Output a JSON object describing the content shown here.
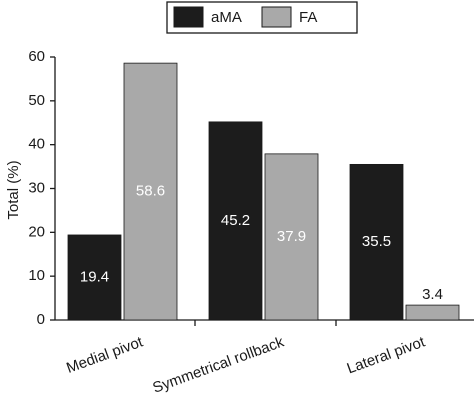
{
  "chart_data": {
    "type": "bar",
    "y_label": "Total (%)",
    "categories": [
      "Medial pivot",
      "Symmetrical rollback",
      "Lateral pivot"
    ],
    "series": [
      {
        "name": "aMA",
        "color": "#1c1c1c",
        "values": [
          19.4,
          45.2,
          35.5
        ]
      },
      {
        "name": "FA",
        "color": "#a9a9a9",
        "values": [
          58.6,
          37.9,
          3.4
        ]
      }
    ],
    "ylim": [
      0,
      60
    ],
    "yticks": [
      0,
      10,
      20,
      30,
      40,
      50,
      60
    ],
    "grid": false,
    "legend": "top"
  }
}
